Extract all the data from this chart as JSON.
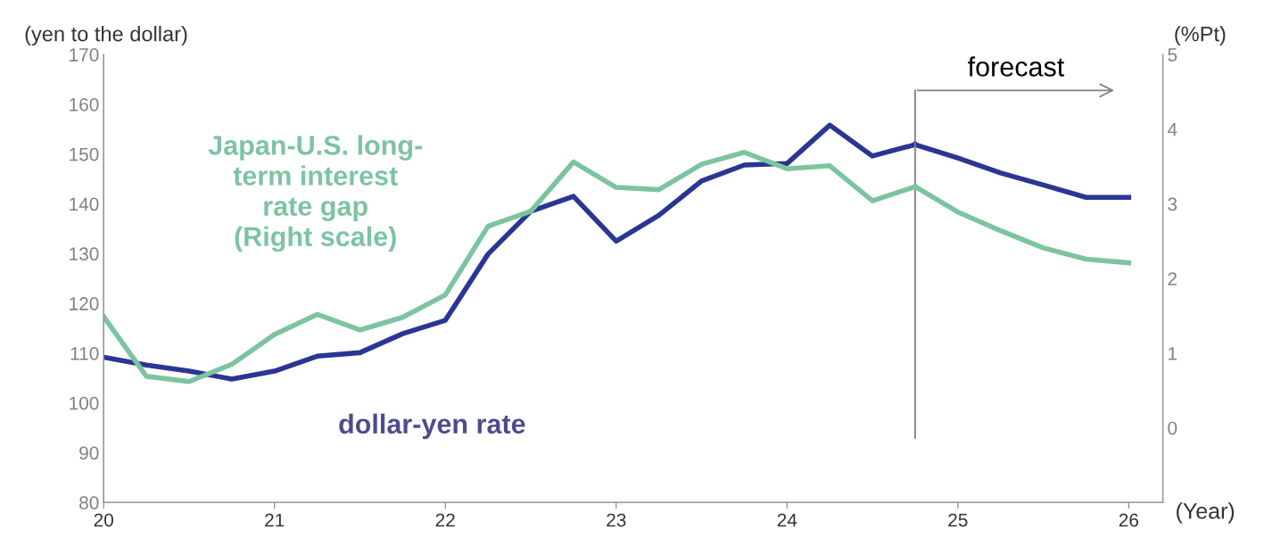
{
  "chart_data": {
    "type": "line",
    "xlabel": "(Year)",
    "ylabel": "(yen to the dollar)",
    "y2label": "(%Pt)",
    "xlim": [
      20,
      26.2
    ],
    "xticks": [
      20,
      21,
      22,
      23,
      24,
      25,
      26
    ],
    "ylim": [
      80,
      170
    ],
    "yticks": [
      80,
      90,
      100,
      110,
      120,
      130,
      140,
      150,
      160,
      170
    ],
    "y2lim": [
      -1,
      5
    ],
    "y2ticks": [
      0,
      1,
      2,
      3,
      4,
      5
    ],
    "grid": false,
    "legend": false,
    "marker": "none",
    "series": [
      {
        "name": "dollar-yen rate",
        "color": "#2b3593",
        "line_style": "solid",
        "x": [
          20,
          20.25,
          20.5,
          20.75,
          21,
          21.25,
          21.5,
          21.75,
          22,
          22.25,
          22.5,
          22.75,
          23,
          23.25,
          23.5,
          23.75,
          24,
          24.25,
          24.5,
          24.75
        ],
        "values": [
          109.2,
          107.6,
          106.4,
          104.8,
          106.4,
          109.4,
          110.1,
          113.9,
          116.6,
          129.9,
          138.5,
          141.5,
          132.5,
          137.7,
          144.6,
          147.8,
          148.1,
          155.8,
          149.6,
          151.9
        ]
      },
      {
        "color": "#2b3593",
        "line_style": "solid",
        "x": [
          24.75,
          25,
          25.25,
          25.5,
          25.75,
          26
        ],
        "values": [
          151.9,
          149.2,
          146.2,
          143.8,
          141.3,
          141.3
        ]
      },
      {
        "name": "Japan-U.S. long-term interest rate gap (Right scale)",
        "color": "#7cc4a0",
        "axis": "y2",
        "line_style": "solid",
        "x": [
          20,
          20.25,
          20.5,
          20.75,
          21,
          21.25,
          21.5,
          21.75,
          22,
          22.25,
          22.5,
          22.75,
          23,
          23.25,
          23.5,
          23.75,
          24,
          24.25,
          24.5,
          24.75
        ],
        "values": [
          1.49,
          0.69,
          0.62,
          0.85,
          1.25,
          1.52,
          1.31,
          1.48,
          1.78,
          2.7,
          2.9,
          3.56,
          3.22,
          3.19,
          3.53,
          3.69,
          3.47,
          3.51,
          3.04,
          3.23
        ]
      },
      {
        "color": "#7cc4a0",
        "axis": "y2",
        "line_style": "solid",
        "x": [
          24.75,
          25,
          25.25,
          25.5,
          25.75,
          26
        ],
        "values": [
          3.23,
          2.89,
          2.64,
          2.41,
          2.26,
          2.21
        ]
      }
    ],
    "ref_lines": [
      {
        "axis": "x",
        "value": 24.75,
        "label": "forecast",
        "color": "#808080"
      }
    ]
  }
}
